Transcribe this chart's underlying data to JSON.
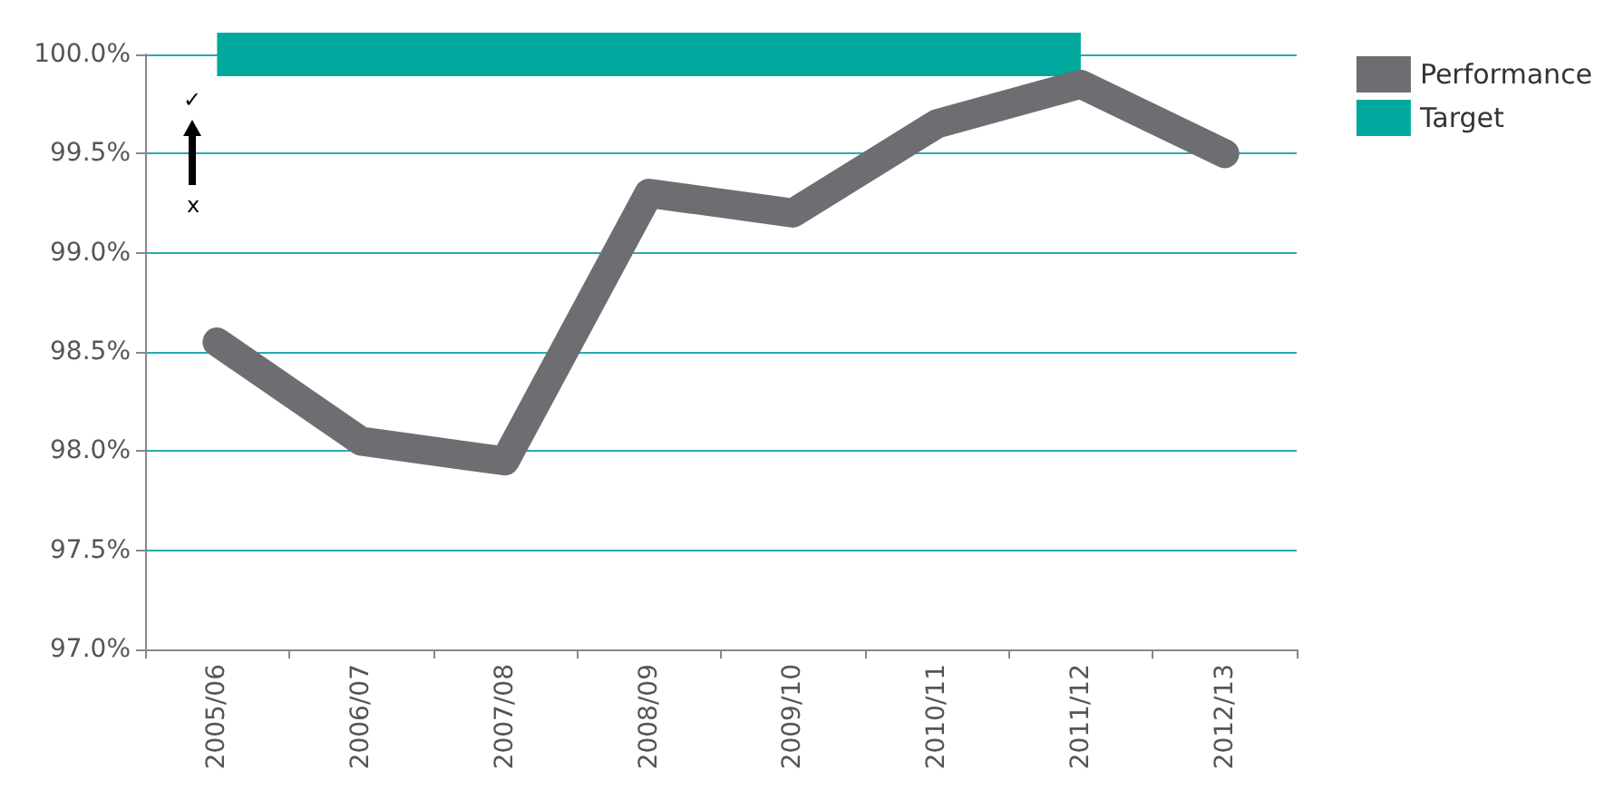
{
  "chart_data": {
    "type": "line",
    "categories": [
      "2005/06",
      "2006/07",
      "2007/08",
      "2008/09",
      "2009/10",
      "2010/11",
      "2011/12",
      "2012/13"
    ],
    "series": [
      {
        "name": "Performance",
        "color": "#6d6e71",
        "values": [
          98.55,
          98.05,
          97.95,
          99.3,
          99.2,
          99.65,
          99.85,
          99.5
        ]
      },
      {
        "name": "Target",
        "color": "#00a99d",
        "values": [
          100,
          100,
          100,
          100,
          100,
          100,
          100,
          null
        ]
      }
    ],
    "ylim": [
      97,
      100
    ],
    "yticks": [
      {
        "value": 97,
        "label": "97.0%"
      },
      {
        "value": 97.5,
        "label": "97.5%"
      },
      {
        "value": 98,
        "label": "98.0%"
      },
      {
        "value": 98.5,
        "label": "98.5%"
      },
      {
        "value": 99,
        "label": "99.0%"
      },
      {
        "value": 99.5,
        "label": "99.5%"
      },
      {
        "value": 100,
        "label": "100.0%"
      }
    ],
    "annotations": [
      "✓",
      "x"
    ],
    "grid": "y",
    "legend": "top right",
    "marker": "none"
  }
}
